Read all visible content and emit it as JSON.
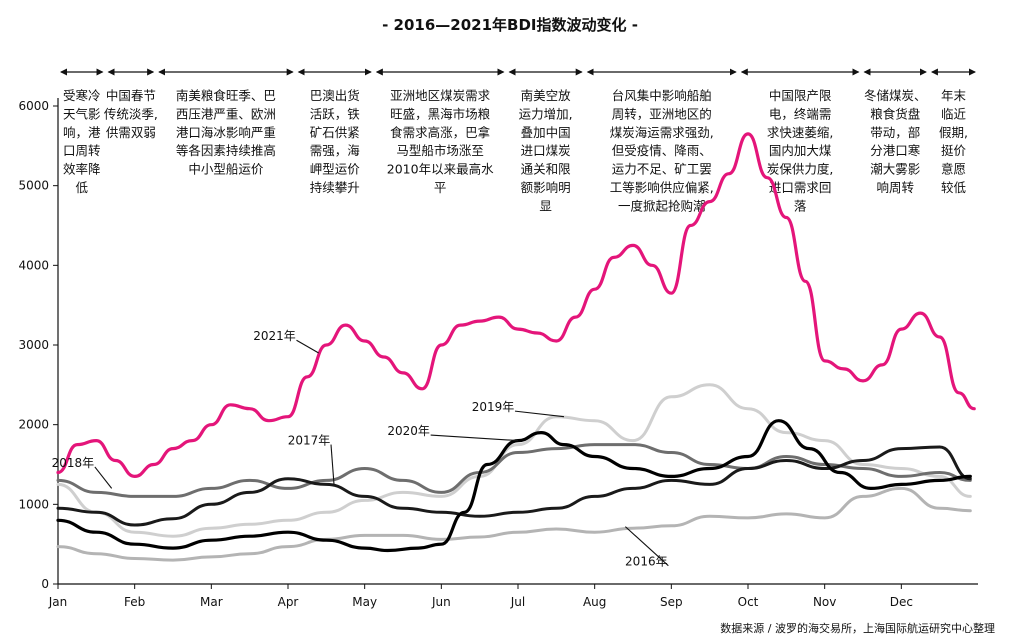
{
  "chart_data": {
    "type": "line",
    "title": "- 2016—2021年BDI指数波动变化 -",
    "source": "数据来源 / 波罗的海交易所，上海国际航运研究中心整理",
    "ylim": [
      0,
      6000
    ],
    "yticks": [
      0,
      1000,
      2000,
      3000,
      4000,
      5000,
      6000
    ],
    "xlim": [
      0,
      12
    ],
    "months": [
      "Jan",
      "Feb",
      "Mar",
      "Apr",
      "May",
      "Jun",
      "Jul",
      "Aug",
      "Sep",
      "Oct",
      "Nov",
      "Dec"
    ],
    "periods": [
      {
        "from": 0,
        "to": 0.62,
        "text": [
          "受寒冷",
          "天气影",
          "响，港",
          "口周转",
          "效率降",
          "低"
        ]
      },
      {
        "from": 0.62,
        "to": 1.28,
        "text": [
          "中国春节",
          "传统淡季,",
          "供需双弱"
        ]
      },
      {
        "from": 1.28,
        "to": 3.1,
        "text": [
          "南美粮食旺季、巴",
          "西压港严重、欧洲",
          "港口海冰影响严重",
          "等各因素持续推高",
          "中小型船运价"
        ]
      },
      {
        "from": 3.1,
        "to": 4.12,
        "text": [
          "巴澳出货",
          "活跃，铁",
          "矿石供紧",
          "需强，海",
          "岬型运价",
          "持续攀升"
        ]
      },
      {
        "from": 4.12,
        "to": 5.85,
        "text": [
          "亚洲地区煤炭需求",
          "旺盛，黑海市场粮",
          "食需求高涨，巴拿",
          "马型船市场涨至",
          "2010年以来最高水",
          "平"
        ]
      },
      {
        "from": 5.85,
        "to": 6.87,
        "text": [
          "南美空放",
          "运力增加,",
          "叠加中国",
          "进口煤炭",
          "通关和限",
          "额影响明",
          "显"
        ]
      },
      {
        "from": 6.87,
        "to": 8.88,
        "text": [
          "台风集中影响船舶",
          "周转，亚洲地区的",
          "煤炭海运需求强劲,",
          "但受疫情、降雨、",
          "运力不足、矿工罢",
          "工等影响供应偏紧,",
          "一度掀起抢购潮"
        ]
      },
      {
        "from": 8.88,
        "to": 10.48,
        "text": [
          "中国限产限",
          "电，终端需",
          "求快速萎缩,",
          "国内加大煤",
          "炭保供力度,",
          "进口需求回",
          "落"
        ]
      },
      {
        "from": 10.48,
        "to": 11.36,
        "text": [
          "冬储煤炭、",
          "粮食货盘",
          "带动，部",
          "分港口寒",
          "潮大雾影",
          "响周转"
        ]
      },
      {
        "from": 11.36,
        "to": 12,
        "text": [
          "年末",
          "临近",
          "假期,",
          "挺价",
          "意愿",
          "较低"
        ]
      }
    ],
    "series": [
      {
        "name": "2016年",
        "color": "#b4b4b4",
        "width": 3,
        "x": [
          0,
          0.5,
          1,
          1.5,
          2,
          2.5,
          3,
          3.5,
          4,
          4.5,
          5,
          5.5,
          6,
          6.5,
          7,
          7.5,
          8,
          8.5,
          9,
          9.5,
          10,
          10.5,
          11,
          11.5,
          11.9
        ],
        "values": [
          470,
          380,
          320,
          300,
          340,
          380,
          470,
          560,
          610,
          610,
          560,
          590,
          650,
          690,
          650,
          700,
          730,
          850,
          830,
          880,
          830,
          1100,
          1200,
          950,
          920
        ]
      },
      {
        "name": "2017年",
        "color": "#1a1a1a",
        "width": 3,
        "x": [
          0,
          0.5,
          1,
          1.5,
          2,
          2.5,
          3,
          3.5,
          4,
          4.5,
          5,
          5.5,
          6,
          6.5,
          7,
          7.5,
          8,
          8.5,
          9,
          9.5,
          10,
          10.5,
          11,
          11.5,
          11.9
        ],
        "values": [
          950,
          900,
          740,
          820,
          1000,
          1150,
          1320,
          1250,
          1100,
          950,
          900,
          850,
          900,
          950,
          1100,
          1200,
          1300,
          1250,
          1450,
          1550,
          1450,
          1550,
          1700,
          1720,
          1320
        ]
      },
      {
        "name": "2018年",
        "color": "#6e6e6e",
        "width": 3,
        "x": [
          0,
          0.5,
          1,
          1.5,
          2,
          2.5,
          3,
          3.5,
          4,
          4.5,
          5,
          5.5,
          6,
          6.5,
          7,
          7.5,
          8,
          8.5,
          9,
          9.5,
          10,
          10.5,
          11,
          11.5,
          11.9
        ],
        "values": [
          1300,
          1150,
          1100,
          1100,
          1200,
          1300,
          1200,
          1300,
          1450,
          1300,
          1150,
          1400,
          1650,
          1700,
          1750,
          1750,
          1650,
          1500,
          1450,
          1600,
          1500,
          1450,
          1350,
          1400,
          1300
        ]
      },
      {
        "name": "2019年",
        "color": "#cfcfcf",
        "width": 3,
        "x": [
          0,
          0.5,
          1,
          1.5,
          2,
          2.5,
          3,
          3.5,
          4,
          4.5,
          5,
          5.5,
          6,
          6.5,
          7,
          7.5,
          8,
          8.5,
          9,
          9.5,
          10,
          10.5,
          11,
          11.5,
          11.9
        ],
        "values": [
          1250,
          900,
          650,
          600,
          700,
          750,
          800,
          900,
          1050,
          1150,
          1100,
          1350,
          1750,
          2100,
          2050,
          1800,
          2350,
          2500,
          2200,
          1900,
          1800,
          1500,
          1450,
          1350,
          1100
        ]
      },
      {
        "name": "2020年",
        "color": "#000000",
        "width": 3.2,
        "x": [
          0,
          0.5,
          1,
          1.5,
          2,
          2.5,
          3,
          3.5,
          4,
          4.3,
          4.7,
          5,
          5.3,
          5.6,
          6,
          6.3,
          6.6,
          7,
          7.5,
          8,
          8.5,
          9,
          9.4,
          9.8,
          10.2,
          10.6,
          11,
          11.5,
          11.9
        ],
        "values": [
          800,
          650,
          500,
          450,
          550,
          600,
          650,
          550,
          450,
          420,
          450,
          500,
          900,
          1500,
          1800,
          1900,
          1750,
          1600,
          1450,
          1350,
          1450,
          1600,
          2050,
          1700,
          1400,
          1200,
          1250,
          1300,
          1350
        ]
      },
      {
        "name": "2021年",
        "color": "#e4157a",
        "width": 3.2,
        "x": [
          0,
          0.25,
          0.5,
          0.75,
          1,
          1.25,
          1.5,
          1.75,
          2,
          2.25,
          2.5,
          2.75,
          3,
          3.25,
          3.5,
          3.75,
          4,
          4.25,
          4.5,
          4.75,
          5,
          5.25,
          5.5,
          5.75,
          6,
          6.25,
          6.5,
          6.75,
          7,
          7.25,
          7.5,
          7.75,
          8,
          8.25,
          8.5,
          8.75,
          9,
          9.25,
          9.5,
          9.75,
          10,
          10.25,
          10.5,
          10.75,
          11,
          11.25,
          11.5,
          11.75,
          11.95
        ],
        "values": [
          1400,
          1750,
          1800,
          1550,
          1350,
          1500,
          1700,
          1800,
          2000,
          2250,
          2200,
          2050,
          2100,
          2600,
          3000,
          3250,
          3050,
          2850,
          2650,
          2450,
          3000,
          3250,
          3300,
          3350,
          3200,
          3150,
          3050,
          3350,
          3700,
          4100,
          4250,
          4000,
          3650,
          4500,
          4800,
          5150,
          5650,
          5100,
          4600,
          3800,
          2800,
          2700,
          2550,
          2750,
          3200,
          3400,
          3100,
          2400,
          2200
        ]
      }
    ],
    "series_labels": [
      {
        "name": "2016年",
        "anchor": [
          7.4,
          720
        ],
        "pos": [
          7.7,
          280
        ]
      },
      {
        "name": "2017年",
        "anchor": [
          3.6,
          1250
        ],
        "pos": [
          3.3,
          1800
        ]
      },
      {
        "name": "2018年",
        "anchor": [
          0.7,
          1200
        ],
        "pos": [
          0.22,
          1520
        ]
      },
      {
        "name": "2019年",
        "anchor": [
          6.6,
          2100
        ],
        "pos": [
          5.7,
          2220
        ]
      },
      {
        "name": "2020年",
        "anchor": [
          6.0,
          1800
        ],
        "pos": [
          4.6,
          1920
        ]
      },
      {
        "name": "2021年",
        "anchor": [
          3.4,
          2900
        ],
        "pos": [
          2.85,
          3110
        ]
      }
    ]
  }
}
